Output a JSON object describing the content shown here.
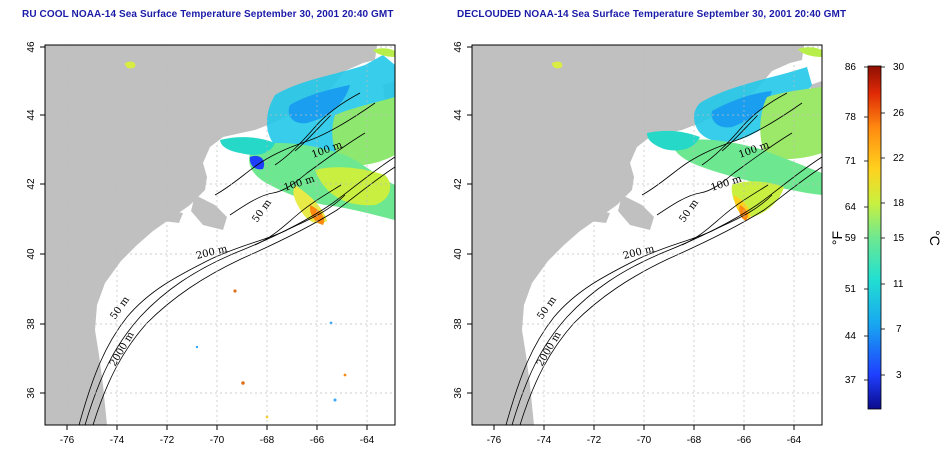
{
  "panel_left": {
    "title": "RU COOL NOAA-14 Sea Surface Temperature September 30, 2001 20:40 GMT"
  },
  "panel_right": {
    "title": "DECLOUDED NOAA-14 Sea Surface Temperature September 30, 2001 20:40 GMT"
  },
  "axes": {
    "lon_ticks": [
      "-76",
      "-74",
      "-72",
      "-70",
      "-68",
      "-66",
      "-64"
    ],
    "lat_ticks": [
      "46",
      "44",
      "42",
      "40",
      "38",
      "36"
    ]
  },
  "contours": {
    "c100a": "100 m",
    "c100b": "100 m",
    "c50a": "50 m",
    "c200": "200 m",
    "c50b": "50 m",
    "c2000": "2000 m"
  },
  "colorbar": {
    "fahrenheit_ticks": [
      "86",
      "78",
      "71",
      "64",
      "59",
      "51",
      "44",
      "37"
    ],
    "celsius_ticks": [
      "30",
      "26",
      "22",
      "18",
      "15",
      "11",
      "7",
      "3"
    ],
    "fahrenheit_unit": "°F",
    "celsius_unit": "°C",
    "colors": [
      "#0b0b8c",
      "#1f3fff",
      "#18a8f0",
      "#22e0d0",
      "#6ee890",
      "#c9f040",
      "#ffd21e",
      "#ff8a10",
      "#e02a06",
      "#8e0f02"
    ]
  },
  "colors": {
    "land": "#c0c0c0",
    "ocean": "#ffffff",
    "grid": "#bdbdbd",
    "title": "#1a1aa8"
  }
}
